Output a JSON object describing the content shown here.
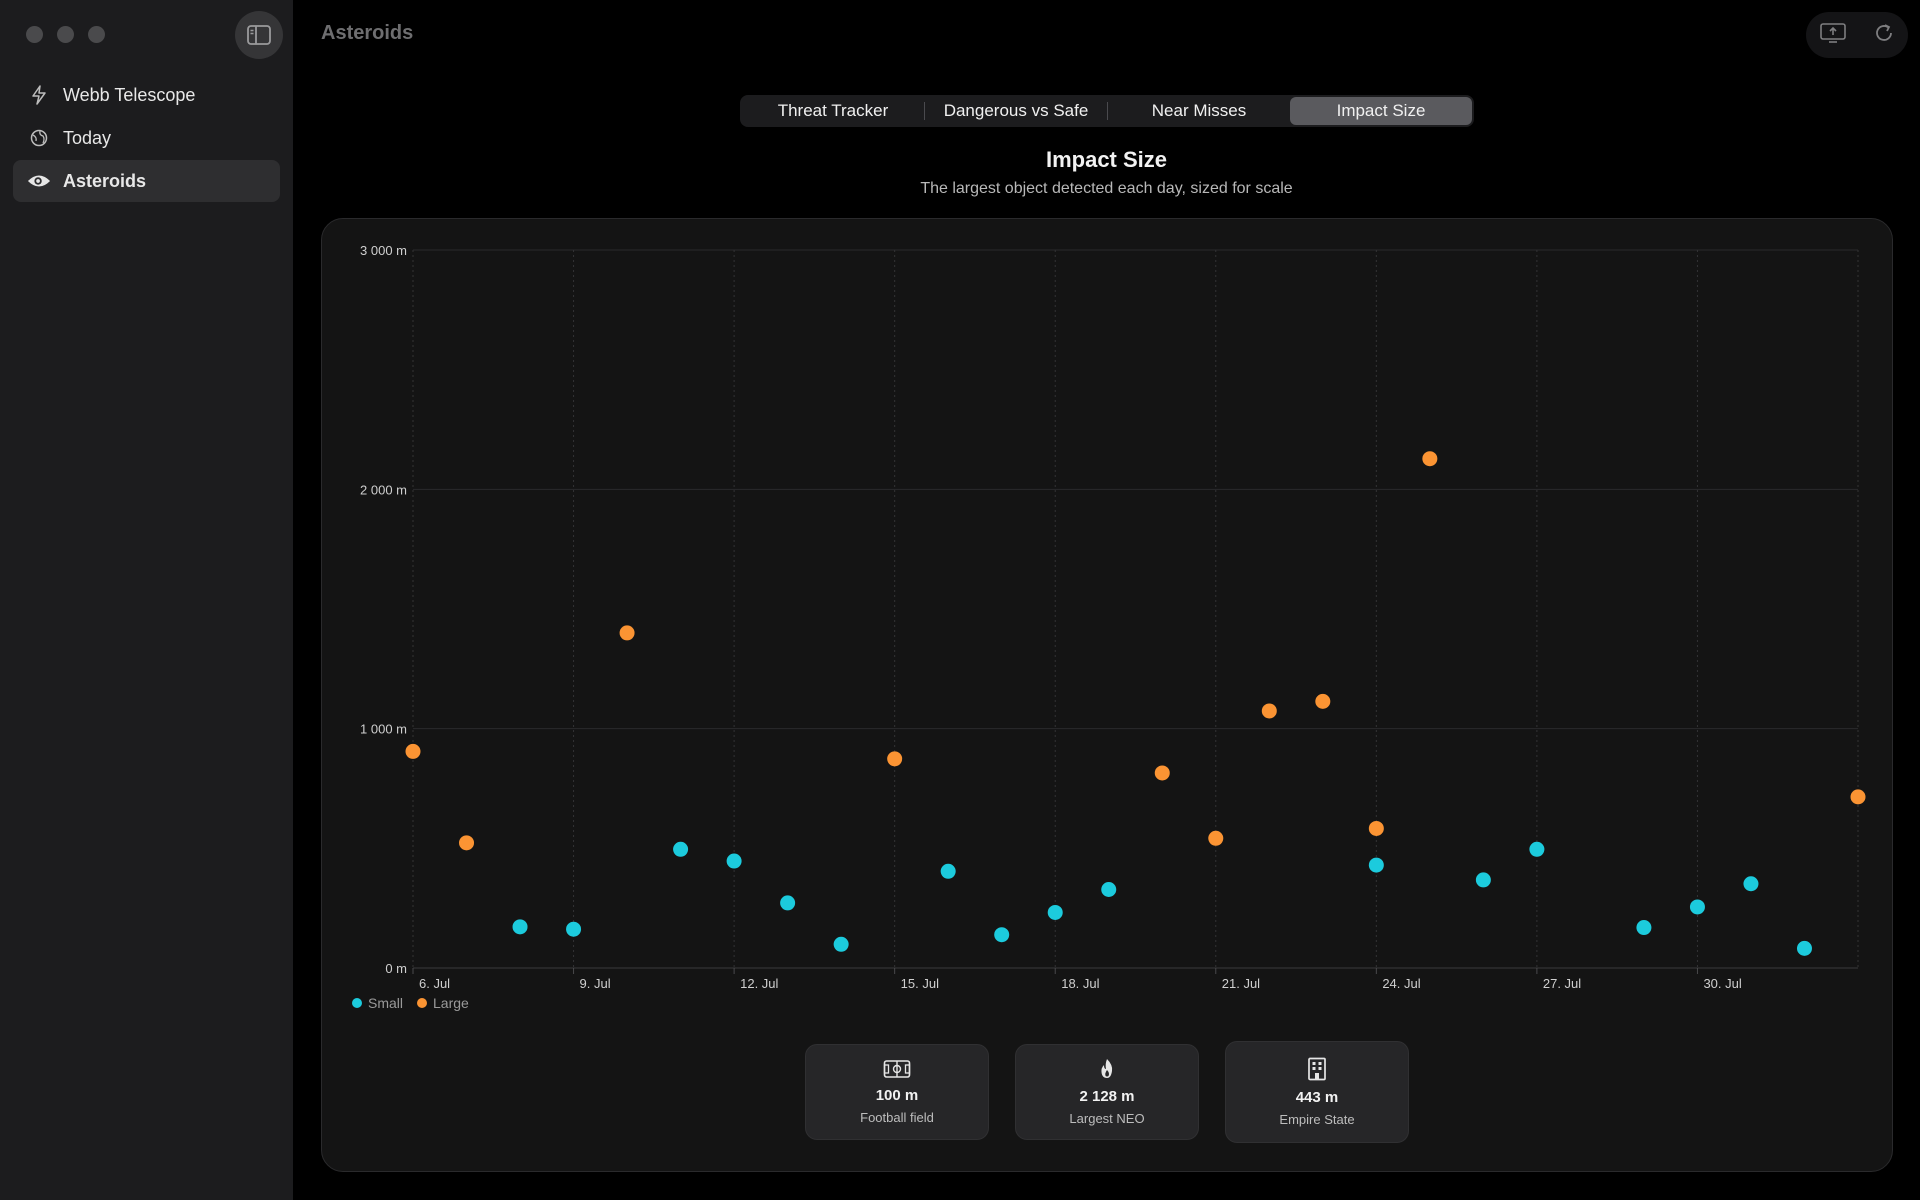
{
  "app": {
    "window_title": "Asteroids"
  },
  "sidebar": {
    "items": [
      {
        "label": "Webb Telescope",
        "icon": "bolt-icon",
        "active": false
      },
      {
        "label": "Today",
        "icon": "globe-icon",
        "active": false
      },
      {
        "label": "Asteroids",
        "icon": "eye-icon",
        "active": true
      }
    ]
  },
  "tabs": [
    {
      "label": "Threat Tracker",
      "active": false
    },
    {
      "label": "Dangerous vs Safe",
      "active": false
    },
    {
      "label": "Near Misses",
      "active": false
    },
    {
      "label": "Impact Size",
      "active": true
    }
  ],
  "chart": {
    "title": "Impact Size",
    "subtitle": "The largest object detected each day, sized for scale"
  },
  "colors": {
    "small": "#1ccbdd",
    "large": "#fb9433",
    "accent_bg": "#5a5a5e"
  },
  "chart_data": {
    "type": "scatter",
    "ylim": [
      0,
      3000
    ],
    "yticks": [
      0,
      1000,
      2000,
      3000
    ],
    "ytick_labels": [
      "0 m",
      "1 000 m",
      "2 000 m",
      "3 000 m"
    ],
    "x_range": [
      "6 Jul",
      "2 Aug"
    ],
    "xtick_labels": [
      "6. Jul",
      "9. Jul",
      "12. Jul",
      "15. Jul",
      "18. Jul",
      "21. Jul",
      "24. Jul",
      "27. Jul",
      "30. Jul"
    ],
    "legend": [
      "Small",
      "Large"
    ],
    "legend_position": "bottom-left",
    "grid": true,
    "series": [
      {
        "name": "Small",
        "color": "#1ccbdd",
        "points": [
          {
            "x": "8 Jul",
            "y": 172
          },
          {
            "x": "9 Jul",
            "y": 162
          },
          {
            "x": "11 Jul",
            "y": 496
          },
          {
            "x": "12 Jul",
            "y": 447
          },
          {
            "x": "13 Jul",
            "y": 272
          },
          {
            "x": "14 Jul",
            "y": 99
          },
          {
            "x": "16 Jul",
            "y": 404
          },
          {
            "x": "17 Jul",
            "y": 139
          },
          {
            "x": "18 Jul",
            "y": 232
          },
          {
            "x": "19 Jul",
            "y": 328
          },
          {
            "x": "24 Jul",
            "y": 430
          },
          {
            "x": "26 Jul",
            "y": 368
          },
          {
            "x": "27 Jul",
            "y": 496
          },
          {
            "x": "29 Jul",
            "y": 169
          },
          {
            "x": "30 Jul",
            "y": 255
          },
          {
            "x": "31 Jul",
            "y": 352
          },
          {
            "x": "1 Aug",
            "y": 82
          }
        ]
      },
      {
        "name": "Large",
        "color": "#fb9433",
        "points": [
          {
            "x": "6 Jul",
            "y": 905
          },
          {
            "x": "7 Jul",
            "y": 523
          },
          {
            "x": "10 Jul",
            "y": 1400
          },
          {
            "x": "15 Jul",
            "y": 874
          },
          {
            "x": "20 Jul",
            "y": 815
          },
          {
            "x": "21 Jul",
            "y": 542
          },
          {
            "x": "22 Jul",
            "y": 1074
          },
          {
            "x": "23 Jul",
            "y": 1114
          },
          {
            "x": "24 Jul",
            "y": 583
          },
          {
            "x": "25 Jul",
            "y": 2128
          },
          {
            "x": "2 Aug",
            "y": 715
          }
        ]
      }
    ]
  },
  "stats": [
    {
      "icon": "football-field-icon",
      "value": "100 m",
      "label": "Football field"
    },
    {
      "icon": "flame-icon",
      "value": "2 128 m",
      "label": "Largest NEO"
    },
    {
      "icon": "building-icon",
      "value": "443 m",
      "label": "Empire State"
    }
  ]
}
